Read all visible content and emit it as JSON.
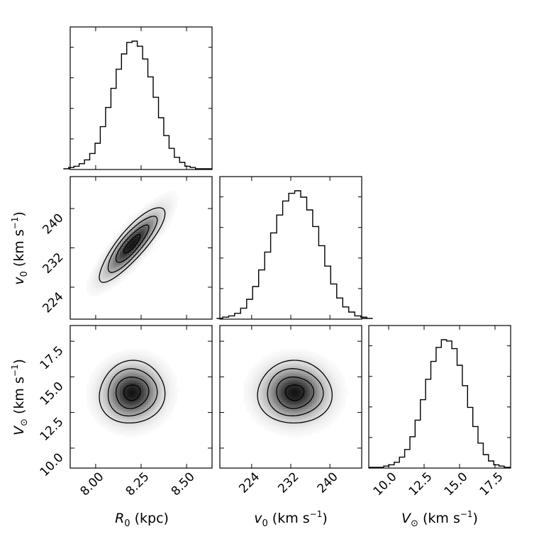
{
  "chart_data": {
    "type": "corner",
    "parameters": [
      {
        "id": "R0",
        "label_main": "R",
        "label_sub": "0",
        "label_unit": " (kpc)",
        "range": [
          7.86,
          8.64
        ],
        "ticks": [
          8.0,
          8.25,
          8.5
        ],
        "tick_labels": [
          "8.00",
          "8.25",
          "8.50"
        ],
        "mean": 8.2,
        "sd": 0.09
      },
      {
        "id": "v0",
        "label_main": "v",
        "label_sub": "0",
        "label_unit": " (km s",
        "label_exp": "−1",
        "label_close": ")",
        "range": [
          217.5,
          246.5
        ],
        "ticks": [
          224,
          232,
          240
        ],
        "tick_labels": [
          "224",
          "232",
          "240"
        ],
        "mean": 232.8,
        "sd": 3.8
      },
      {
        "id": "Vsun",
        "label_main": "V",
        "label_sub": "⊙",
        "label_unit": " (km s",
        "label_exp": "−1",
        "label_close": ")",
        "range": [
          8.6,
          18.6
        ],
        "ticks": [
          10.0,
          12.5,
          15.0,
          17.5
        ],
        "tick_labels": [
          "10.0",
          "12.5",
          "15.0",
          "17.5"
        ],
        "mean": 13.9,
        "sd": 1.1
      }
    ],
    "histograms": {
      "R0": [
        0,
        1,
        2,
        4,
        7,
        12,
        20,
        33,
        48,
        63,
        78,
        90,
        99,
        100,
        96,
        86,
        72,
        56,
        40,
        26,
        16,
        9,
        5,
        2,
        1,
        0
      ],
      "v0": [
        0,
        1,
        2,
        4,
        8,
        15,
        25,
        38,
        52,
        67,
        81,
        92,
        98,
        100,
        95,
        85,
        72,
        57,
        41,
        27,
        16,
        9,
        5,
        2,
        1,
        0
      ],
      "Vsun": [
        0,
        1,
        2,
        4,
        8,
        14,
        24,
        37,
        53,
        69,
        83,
        94,
        100,
        99,
        93,
        80,
        64,
        47,
        32,
        19,
        10,
        5,
        2,
        1,
        0
      ]
    },
    "correlations": {
      "R0_v0": 0.85,
      "R0_Vsun": 0.05,
      "v0_Vsun": 0.0
    },
    "contour_levels_sigma": [
      0.5,
      1.0,
      1.5,
      2.0
    ]
  }
}
